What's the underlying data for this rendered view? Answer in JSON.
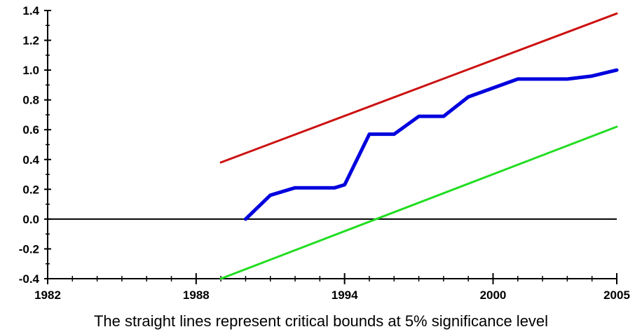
{
  "chart_data": {
    "type": "line",
    "caption": "The straight lines represent critical bounds at 5% significance level",
    "xlim": [
      1982,
      2005
    ],
    "ylim": [
      -0.4,
      1.4
    ],
    "x_ticks": [
      1982,
      1988,
      1994,
      2000,
      2005
    ],
    "x_tick_labels": [
      "1982",
      "1988",
      "1994",
      "2000",
      "2005"
    ],
    "y_ticks": [
      -0.4,
      -0.2,
      0.0,
      0.2,
      0.4,
      0.6,
      0.8,
      1.0,
      1.2,
      1.4
    ],
    "y_tick_labels": [
      "-0.4",
      "-0.2",
      "0.0",
      "0.2",
      "0.4",
      "0.6",
      "0.8",
      "1.0",
      "1.2",
      "1.4"
    ],
    "grid": false,
    "zero_line": true,
    "series": [
      {
        "color": "#0000dd",
        "x": [
          1990,
          1991,
          1992,
          1993,
          1993.6,
          1994,
          1995,
          1996,
          1997,
          1998,
          1999,
          2000,
          2001,
          2002,
          2003,
          2004,
          2005
        ],
        "y": [
          0.0,
          0.16,
          0.21,
          0.21,
          0.21,
          0.23,
          0.57,
          0.57,
          0.69,
          0.69,
          0.82,
          0.88,
          0.94,
          0.94,
          0.94,
          0.96,
          1.0
        ]
      },
      {
        "color": "#cc1111",
        "x": [
          1989,
          2005
        ],
        "y": [
          0.38,
          1.38
        ]
      },
      {
        "color": "#22dd22",
        "x": [
          1989,
          2005
        ],
        "y": [
          -0.4,
          0.62
        ]
      }
    ]
  }
}
